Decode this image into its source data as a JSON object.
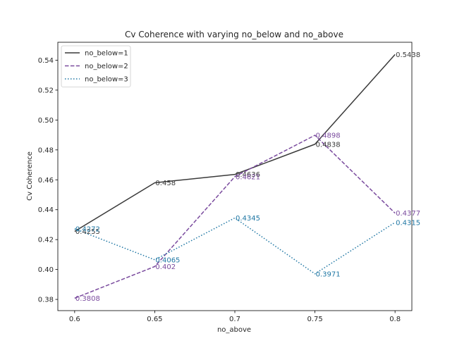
{
  "chart_data": {
    "type": "line",
    "title": "Cv Coherence with varying no_below and no_above",
    "xlabel": "no_above",
    "ylabel": "Cv Coherence",
    "categories": [
      "0.6",
      "0.65",
      "0.7",
      "0.75",
      "0.8"
    ],
    "x": [
      0.6,
      0.65,
      0.7,
      0.75,
      0.8
    ],
    "xlim": [
      0.5895,
      0.8105
    ],
    "ylim": [
      0.3725,
      0.552
    ],
    "yticks": [
      0.38,
      0.4,
      0.42,
      0.44,
      0.46,
      0.48,
      0.5,
      0.52,
      0.54
    ],
    "ytick_labels": [
      "0.38",
      "0.40",
      "0.42",
      "0.44",
      "0.46",
      "0.48",
      "0.50",
      "0.52",
      "0.54"
    ],
    "grid": false,
    "legend_position": "top-left",
    "series": [
      {
        "name": "no_below=1",
        "color": "#3a3a3a",
        "dash": "solid",
        "values": [
          0.4255,
          0.458,
          0.4636,
          0.4838,
          0.5438
        ],
        "labels": [
          "0.4255",
          "0.458",
          "0.4636",
          "0.4838",
          "0.5438"
        ]
      },
      {
        "name": "no_below=2",
        "color": "#7a4b9e",
        "dash": "dashed",
        "values": [
          0.3808,
          0.402,
          0.4621,
          0.4898,
          0.4377
        ],
        "labels": [
          "0.3808",
          "0.402",
          "0.4621",
          "0.4898",
          "0.4377"
        ]
      },
      {
        "name": "no_below=3",
        "color": "#1f77a4",
        "dash": "dotted",
        "values": [
          0.4272,
          0.4065,
          0.4345,
          0.3971,
          0.4315
        ],
        "labels": [
          "0.4272",
          "0.4065",
          "0.4345",
          "0.3971",
          "0.4315"
        ]
      }
    ]
  }
}
